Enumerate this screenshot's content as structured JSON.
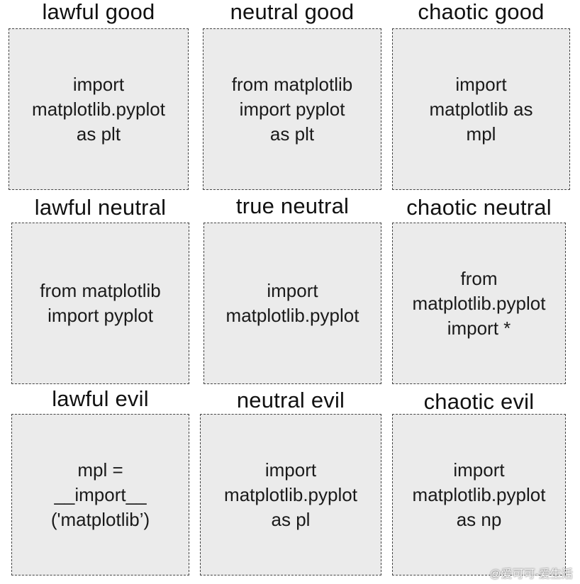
{
  "chart": {
    "cells": [
      {
        "alignment": "lawful good",
        "code": "import\nmatplotlib.pyplot\nas plt"
      },
      {
        "alignment": "neutral good",
        "code": "from matplotlib\nimport pyplot\nas plt"
      },
      {
        "alignment": "chaotic good",
        "code": "import\nmatplotlib as\nmpl"
      },
      {
        "alignment": "lawful neutral",
        "code": "from matplotlib\nimport pyplot"
      },
      {
        "alignment": "true neutral",
        "code": "import\nmatplotlib.pyplot"
      },
      {
        "alignment": "chaotic neutral",
        "code": "from\nmatplotlib.pyplot\nimport *"
      },
      {
        "alignment": "lawful evil",
        "code": "mpl =\n__import__\n('matplotlib’)"
      },
      {
        "alignment": "neutral evil",
        "code": "import\nmatplotlib.pyplot\nas pl"
      },
      {
        "alignment": "chaotic evil",
        "code": "import\nmatplotlib.pyplot\nas np"
      }
    ]
  },
  "watermark": "@爱可可-爱生活"
}
